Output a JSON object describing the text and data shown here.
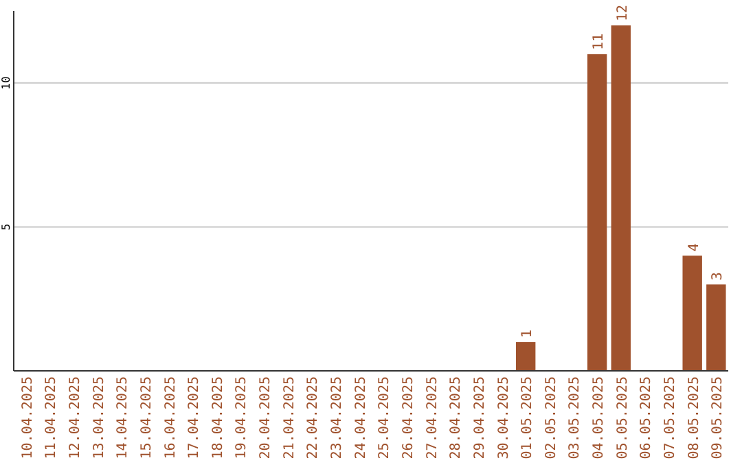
{
  "chart_data": {
    "type": "bar",
    "categories": [
      "10.04.2025",
      "11.04.2025",
      "12.04.2025",
      "13.04.2025",
      "14.04.2025",
      "15.04.2025",
      "16.04.2025",
      "17.04.2025",
      "18.04.2025",
      "19.04.2025",
      "20.04.2025",
      "21.04.2025",
      "22.04.2025",
      "23.04.2025",
      "24.04.2025",
      "25.04.2025",
      "26.04.2025",
      "27.04.2025",
      "28.04.2025",
      "29.04.2025",
      "30.04.2025",
      "01.05.2025",
      "02.05.2025",
      "03.05.2025",
      "04.05.2025",
      "05.05.2025",
      "06.05.2025",
      "07.05.2025",
      "08.05.2025",
      "09.05.2025"
    ],
    "values": [
      0,
      0,
      0,
      0,
      0,
      0,
      0,
      0,
      0,
      0,
      0,
      0,
      0,
      0,
      0,
      0,
      0,
      0,
      0,
      0,
      0,
      1,
      0,
      0,
      11,
      12,
      0,
      0,
      4,
      3
    ],
    "value_labels": [
      null,
      null,
      null,
      null,
      null,
      null,
      null,
      null,
      null,
      null,
      null,
      null,
      null,
      null,
      null,
      null,
      null,
      null,
      null,
      null,
      null,
      "1",
      null,
      null,
      "11",
      "12",
      null,
      null,
      "4",
      "3"
    ],
    "color": "#a0522d",
    "ylim": [
      0,
      12.5
    ],
    "yticks": [
      5,
      10
    ],
    "grid": "y"
  }
}
